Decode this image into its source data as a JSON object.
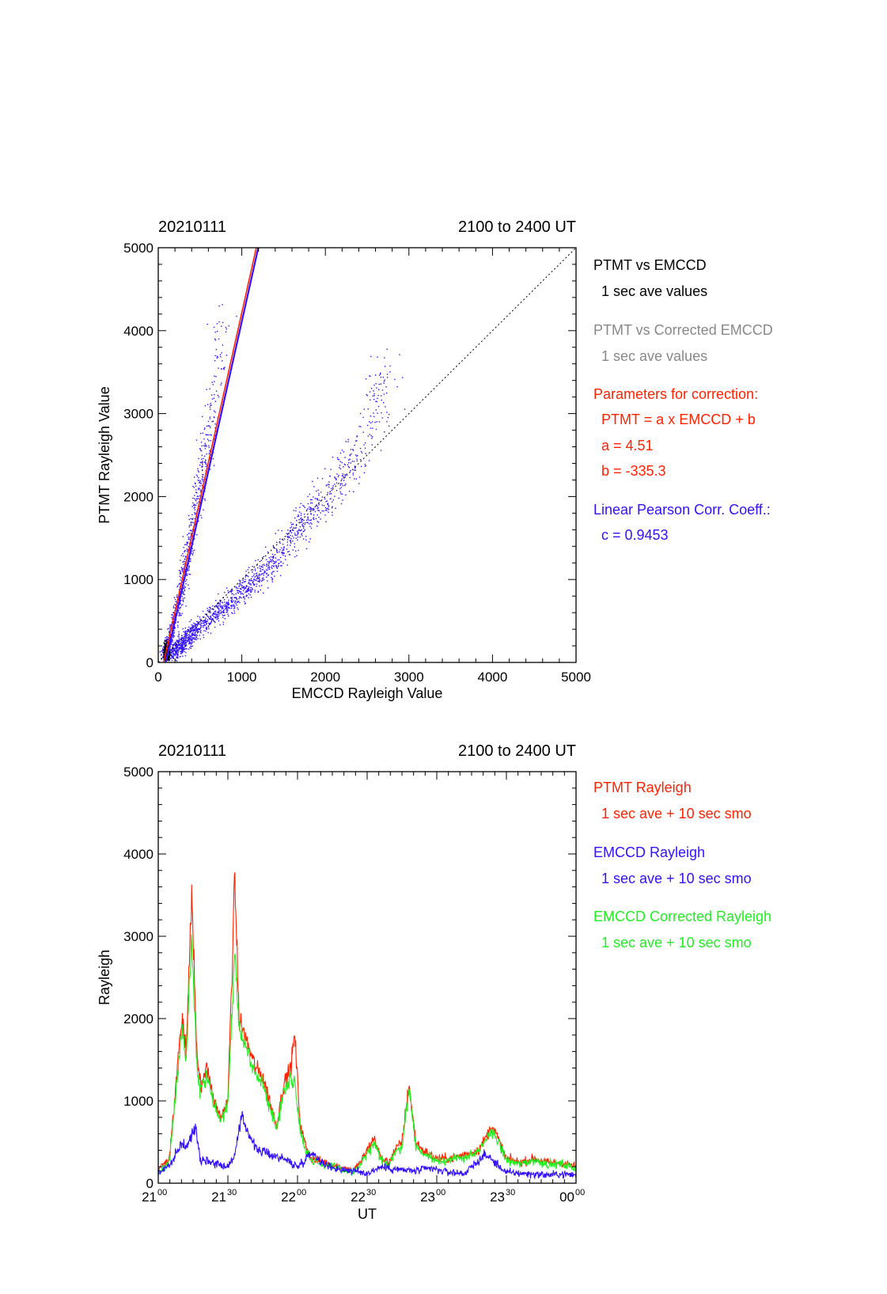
{
  "chart_data": [
    {
      "type": "scatter",
      "date_label": "20210111",
      "time_range_label": "2100 to 2400 UT",
      "xlabel": "EMCCD Rayleigh Value",
      "ylabel": "PTMT Rayleigh Value",
      "xlim": [
        0,
        5000
      ],
      "ylim": [
        0,
        5000
      ],
      "x_ticks": [
        "0",
        "1000",
        "2000",
        "3000",
        "4000",
        "5000"
      ],
      "y_ticks": [
        "0",
        "1000",
        "2000",
        "3000",
        "4000",
        "5000"
      ],
      "reference_line": {
        "type": "y=x",
        "style": "dotted",
        "color": "#000000"
      },
      "fit_line": {
        "a": 4.51,
        "b": -335.3,
        "colors": [
          "#ff2200",
          "#3311ff"
        ]
      },
      "point_clouds": [
        {
          "name": "PTMT vs EMCCD",
          "color": "#3311ff",
          "centers": [
            [
              60,
              100
            ],
            [
              120,
              250
            ],
            [
              200,
              550
            ],
            [
              280,
              900
            ],
            [
              350,
              1300
            ],
            [
              420,
              1700
            ],
            [
              500,
              2100
            ],
            [
              560,
              2500
            ],
            [
              620,
              2900
            ],
            [
              700,
              3500
            ],
            [
              760,
              4300
            ]
          ]
        },
        {
          "name": "PTMT vs Corrected EMCCD",
          "color": "#3311ff",
          "centers": [
            [
              150,
              100
            ],
            [
              300,
              250
            ],
            [
              500,
              450
            ],
            [
              800,
              700
            ],
            [
              1100,
              950
            ],
            [
              1400,
              1250
            ],
            [
              1700,
              1700
            ],
            [
              2000,
              2000
            ],
            [
              2300,
              2400
            ],
            [
              2600,
              3000
            ],
            [
              2700,
              3600
            ]
          ]
        }
      ],
      "legend": [
        {
          "text": "PTMT vs EMCCD",
          "color": "#000000"
        },
        {
          "text": "1 sec ave values",
          "color": "#000000",
          "indent": true
        },
        {
          "text": "PTMT vs Corrected EMCCD",
          "color": "#888888"
        },
        {
          "text": "1 sec ave values",
          "color": "#888888",
          "indent": true
        },
        {
          "text": "Parameters for correction:",
          "color": "#ff2200"
        },
        {
          "text": "PTMT = a x EMCCD + b",
          "color": "#ff2200",
          "indent": true
        },
        {
          "text": "a = 4.51",
          "color": "#ff2200",
          "indent": true
        },
        {
          "text": "b = -335.3",
          "color": "#ff2200",
          "indent": true
        },
        {
          "text": "Linear Pearson Corr. Coeff.:",
          "color": "#3311ff"
        },
        {
          "text": "c = 0.9453",
          "color": "#3311ff",
          "indent": true
        }
      ],
      "legend_placement": "right"
    },
    {
      "type": "line",
      "date_label": "20210111",
      "time_range_label": "2100 to 2400 UT",
      "xlabel": "UT",
      "ylabel": "Rayleigh",
      "xlim": [
        21.0,
        24.0
      ],
      "ylim": [
        0,
        5000
      ],
      "x_ticks": [
        {
          "hour": "21",
          "min": "00"
        },
        {
          "hour": "21",
          "min": "30"
        },
        {
          "hour": "22",
          "min": "00"
        },
        {
          "hour": "22",
          "min": "30"
        },
        {
          "hour": "23",
          "min": "00"
        },
        {
          "hour": "23",
          "min": "30"
        },
        {
          "hour": "00",
          "min": "00"
        }
      ],
      "y_ticks": [
        "0",
        "1000",
        "2000",
        "3000",
        "4000",
        "5000"
      ],
      "series": [
        {
          "name": "EMCCD Rayleigh",
          "color": "#3311ff",
          "x": [
            21.0,
            21.1,
            21.17,
            21.2,
            21.27,
            21.3,
            21.4,
            21.5,
            21.55,
            21.6,
            21.7,
            21.8,
            21.9,
            22.0,
            22.05,
            22.1,
            22.2,
            22.3,
            22.4,
            22.5,
            22.6,
            22.75,
            22.85,
            22.95,
            23.1,
            23.2,
            23.35,
            23.5,
            23.6,
            23.7,
            23.8,
            23.9,
            24.0
          ],
          "values": [
            120,
            250,
            500,
            420,
            700,
            300,
            250,
            200,
            350,
            800,
            420,
            350,
            300,
            200,
            280,
            380,
            220,
            170,
            150,
            120,
            200,
            160,
            150,
            180,
            130,
            120,
            350,
            130,
            120,
            110,
            100,
            110,
            100
          ]
        },
        {
          "name": "PTMT Rayleigh",
          "color": "#ff2200",
          "x": [
            21.0,
            21.08,
            21.17,
            21.2,
            21.24,
            21.28,
            21.3,
            21.35,
            21.4,
            21.45,
            21.5,
            21.55,
            21.58,
            21.62,
            21.7,
            21.75,
            21.8,
            21.85,
            21.9,
            21.95,
            21.98,
            22.02,
            22.06,
            22.1,
            22.2,
            22.3,
            22.4,
            22.45,
            22.55,
            22.6,
            22.65,
            22.7,
            22.75,
            22.8,
            22.85,
            22.9,
            23.0,
            23.1,
            23.2,
            23.3,
            23.35,
            23.4,
            23.5,
            23.6,
            23.7,
            23.8,
            23.9,
            24.0
          ],
          "values": [
            150,
            300,
            2000,
            1600,
            3500,
            1500,
            1200,
            1400,
            1000,
            800,
            1000,
            3700,
            2000,
            1800,
            1400,
            1300,
            1000,
            700,
            1200,
            1400,
            1800,
            700,
            450,
            300,
            250,
            200,
            150,
            250,
            550,
            300,
            250,
            400,
            500,
            1200,
            500,
            400,
            300,
            300,
            350,
            400,
            550,
            700,
            300,
            250,
            300,
            250,
            250,
            200
          ]
        },
        {
          "name": "EMCCD Corrected Rayleigh",
          "color": "#22ee22",
          "x": [
            21.0,
            21.08,
            21.17,
            21.2,
            21.24,
            21.28,
            21.3,
            21.35,
            21.4,
            21.45,
            21.5,
            21.55,
            21.58,
            21.62,
            21.7,
            21.75,
            21.8,
            21.85,
            21.9,
            21.95,
            21.98,
            22.02,
            22.06,
            22.1,
            22.2,
            22.3,
            22.4,
            22.45,
            22.55,
            22.6,
            22.65,
            22.7,
            22.75,
            22.8,
            22.85,
            22.9,
            23.0,
            23.1,
            23.2,
            23.3,
            23.35,
            23.4,
            23.5,
            23.6,
            23.7,
            23.8,
            23.9,
            24.0
          ],
          "values": [
            120,
            260,
            1900,
            1500,
            3000,
            1400,
            1100,
            1300,
            950,
            750,
            950,
            2900,
            1900,
            1700,
            1300,
            1200,
            950,
            650,
            1100,
            1300,
            1200,
            650,
            400,
            280,
            220,
            180,
            130,
            220,
            480,
            280,
            230,
            360,
            450,
            1150,
            450,
            360,
            280,
            280,
            320,
            370,
            520,
            650,
            280,
            230,
            280,
            230,
            230,
            180
          ]
        }
      ],
      "legend": [
        {
          "text": "PTMT Rayleigh",
          "color": "#ff2200"
        },
        {
          "text": "1 sec ave + 10 sec smo",
          "color": "#ff2200",
          "indent": true
        },
        {
          "text": "EMCCD Rayleigh",
          "color": "#3311ff"
        },
        {
          "text": "1 sec ave + 10 sec smo",
          "color": "#3311ff",
          "indent": true
        },
        {
          "text": "EMCCD Corrected Rayleigh",
          "color": "#22ee22"
        },
        {
          "text": "1 sec ave + 10 sec smo",
          "color": "#22ee22",
          "indent": true
        }
      ],
      "legend_placement": "right"
    }
  ]
}
